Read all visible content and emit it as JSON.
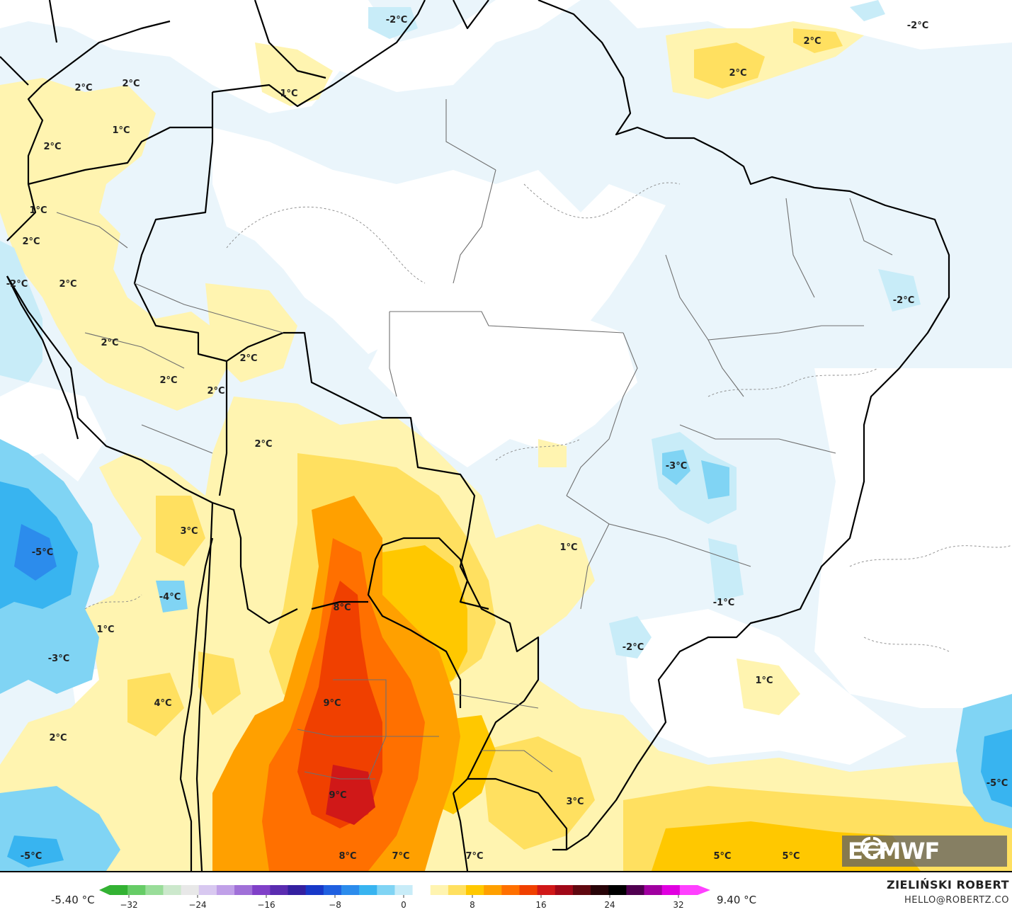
{
  "map": {
    "labels": [
      {
        "text": "-2°C"
      },
      {
        "text": "-2°C"
      },
      {
        "text": "2°C"
      },
      {
        "text": "2°C"
      },
      {
        "text": "2°C"
      },
      {
        "text": "2°C"
      },
      {
        "text": "1°C"
      },
      {
        "text": "1°C"
      },
      {
        "text": "2°C"
      },
      {
        "text": "1°C"
      },
      {
        "text": "2°C"
      },
      {
        "text": "-2°C"
      },
      {
        "text": "2°C"
      },
      {
        "text": "2°C"
      },
      {
        "text": "-2°C"
      },
      {
        "text": "2°C"
      },
      {
        "text": "2°C"
      },
      {
        "text": "2°C"
      },
      {
        "text": "2°C"
      },
      {
        "text": "-3°C"
      },
      {
        "text": "3°C"
      },
      {
        "text": "1°C"
      },
      {
        "text": "-5°C"
      },
      {
        "text": "-4°C"
      },
      {
        "text": "8°C"
      },
      {
        "text": "-1°C"
      },
      {
        "text": "1°C"
      },
      {
        "text": "-3°C"
      },
      {
        "text": "-2°C"
      },
      {
        "text": "4°C"
      },
      {
        "text": "1°C"
      },
      {
        "text": "9°C"
      },
      {
        "text": "2°C"
      },
      {
        "text": "9°C"
      },
      {
        "text": "3°C"
      },
      {
        "text": "-5°C"
      },
      {
        "text": "-5°C"
      },
      {
        "text": "8°C"
      },
      {
        "text": "7°C"
      },
      {
        "text": "7°C"
      },
      {
        "text": "5°C"
      },
      {
        "text": "5°C"
      }
    ]
  },
  "legend": {
    "min_label": "-5.40 °C",
    "max_label": "9.40 °C",
    "ticks": [
      "−32",
      "−24",
      "−16",
      "−8",
      "0",
      "8",
      "16",
      "24",
      "32"
    ],
    "colors": [
      "#33b233",
      "#66cc66",
      "#99dd99",
      "#cce8cc",
      "#e8e8e8",
      "#d8c8f0",
      "#c0a0e8",
      "#a070d8",
      "#8040c8",
      "#5a2cb0",
      "#3420a0",
      "#1838c8",
      "#2060e0",
      "#2c8cec",
      "#38b4f0",
      "#80d4f4",
      "#c8ecf8",
      "#ffffff",
      "#fff4b0",
      "#ffe060",
      "#ffc800",
      "#ffa000",
      "#ff7000",
      "#f04000",
      "#d01818",
      "#a00818",
      "#600810",
      "#280408",
      "#000000",
      "#500050",
      "#a000a0",
      "#e000e0",
      "#ff40ff"
    ]
  },
  "credit": {
    "author": "ZIELIŃSKI ROBERT",
    "email": "HELLO@ROBERTZ.CO"
  },
  "logo": {
    "text": "ECMWF"
  }
}
